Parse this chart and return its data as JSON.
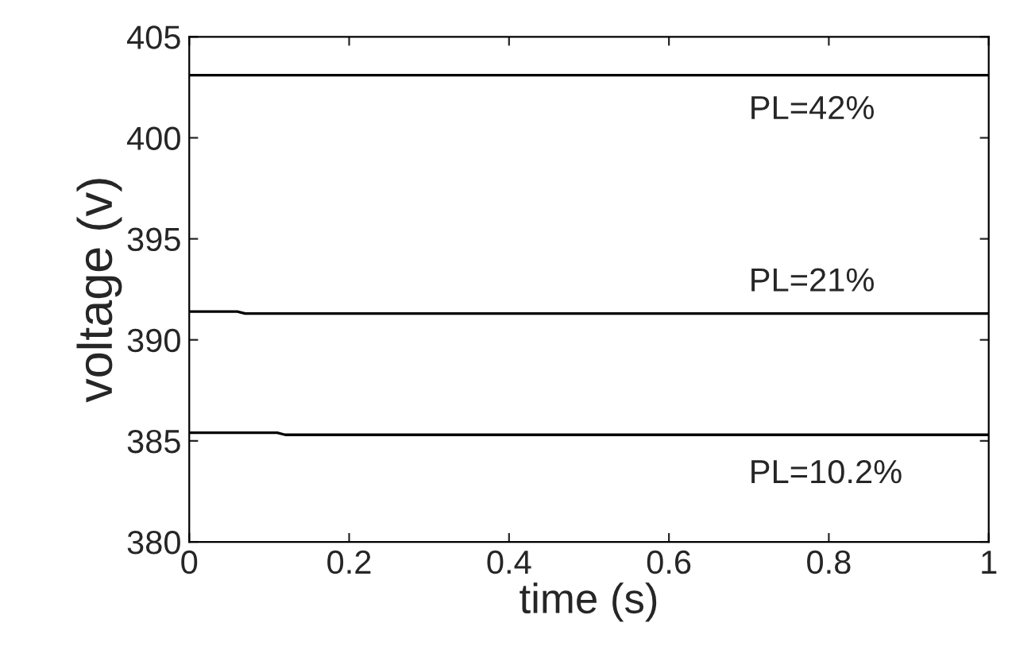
{
  "chart_data": {
    "type": "line",
    "xlabel": "time (s)",
    "ylabel": "voltage (v)",
    "xlim": [
      0,
      1
    ],
    "xticks": [
      0,
      0.2,
      0.4,
      0.6,
      0.8,
      1
    ],
    "ylim": [
      380,
      405
    ],
    "yticks": [
      380,
      385,
      390,
      395,
      400,
      405
    ],
    "series": [
      {
        "color": "#000000",
        "x": [
          0,
          1
        ],
        "values": [
          403.1,
          403.1
        ]
      },
      {
        "color": "#000000",
        "x": [
          0,
          0.06,
          0.07,
          1
        ],
        "values": [
          391.4,
          391.4,
          391.3,
          391.3
        ]
      },
      {
        "color": "#000000",
        "x": [
          0,
          0.11,
          0.12,
          1
        ],
        "values": [
          385.4,
          385.4,
          385.3,
          385.3
        ]
      }
    ],
    "annotations": [
      "PL=42%",
      "PL=21%",
      "PL=10.2%"
    ],
    "grid": false,
    "legend": false,
    "marker": "none",
    "line_style": "solid"
  }
}
